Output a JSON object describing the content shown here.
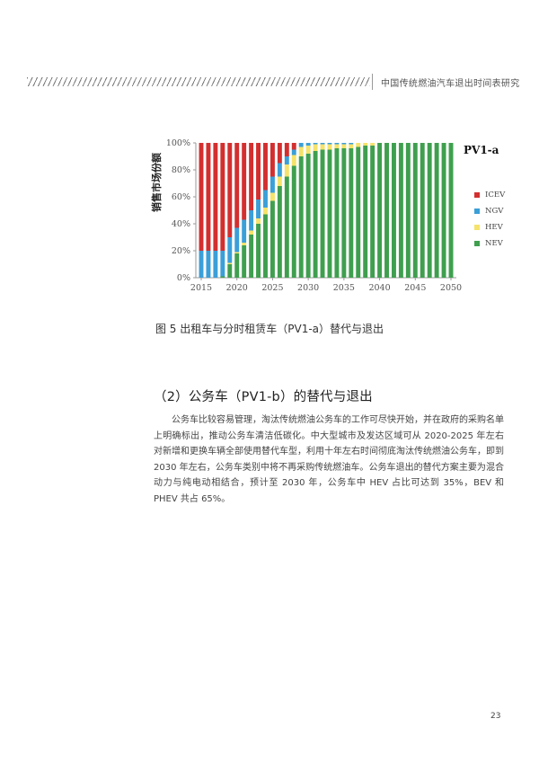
{
  "header": {
    "title": "中国传统燃油汽车退出时间表研究"
  },
  "figure": {
    "label": "PV1-a",
    "caption": "图 5 出租车与分时租赁车（PV1-a）替代与退出"
  },
  "section": {
    "title": "（2）公务车（PV1-b）的替代与退出",
    "paragraph": "公务车比较容易管理，淘汰传统燃油公务车的工作可尽快开始，并在政府的采购名单上明确标出，推动公务车清洁低碳化。中大型城市及发达区域可从 2020-2025 年左右对新增和更换车辆全部使用替代车型，利用十年左右时间彻底淘汰传统燃油公务车，即到 2030 年左右，公务车类别中将不再采购传统燃油车。公务车退出的替代方案主要为混合动力与纯电动相结合，预计至 2030 年，公务车中 HEV 占比可达到 35%，BEV 和 PHEV 共占 65%。"
  },
  "page_number": "23",
  "colors": {
    "ICEV": "#d32f2f",
    "NGV": "#3b9fd8",
    "HEV": "#f5e36b",
    "NEV": "#3f9f4f"
  },
  "chart_data": {
    "type": "bar",
    "stacked": true,
    "ylabel": "销售市场份额",
    "ylim": [
      0,
      100
    ],
    "yticks": [
      "0%",
      "20%",
      "40%",
      "60%",
      "80%",
      "100%"
    ],
    "xticks": [
      "2015",
      "2020",
      "2025",
      "2030",
      "2035",
      "2040",
      "2045",
      "2050"
    ],
    "legend": [
      "ICEV",
      "NGV",
      "HEV",
      "NEV"
    ],
    "categories": [
      2015,
      2016,
      2017,
      2018,
      2019,
      2020,
      2021,
      2022,
      2023,
      2024,
      2025,
      2026,
      2027,
      2028,
      2029,
      2030,
      2031,
      2032,
      2033,
      2034,
      2035,
      2036,
      2037,
      2038,
      2039,
      2040,
      2041,
      2042,
      2043,
      2044,
      2045,
      2046,
      2047,
      2048,
      2049,
      2050
    ],
    "series": [
      {
        "name": "ICEV",
        "values": [
          80,
          80,
          80,
          80,
          70,
          63,
          57,
          50,
          42,
          35,
          25,
          15,
          10,
          5,
          0,
          0,
          0,
          0,
          0,
          0,
          0,
          0,
          0,
          0,
          0,
          0,
          0,
          0,
          0,
          0,
          0,
          0,
          0,
          0,
          0,
          0
        ]
      },
      {
        "name": "NGV",
        "values": [
          20,
          20,
          20,
          19,
          19,
          18,
          17,
          15,
          14,
          13,
          12,
          10,
          6,
          4,
          3,
          2,
          1,
          1,
          1,
          1,
          1,
          1,
          0,
          0,
          0,
          0,
          0,
          0,
          0,
          0,
          0,
          0,
          0,
          0,
          0,
          0
        ]
      },
      {
        "name": "HEV",
        "values": [
          0,
          0,
          0,
          0,
          1,
          1,
          2,
          3,
          4,
          5,
          6,
          7,
          9,
          8,
          7,
          6,
          5,
          4,
          4,
          3,
          3,
          3,
          3,
          2,
          2,
          0,
          0,
          0,
          0,
          0,
          0,
          0,
          0,
          0,
          0,
          0
        ]
      },
      {
        "name": "NEV",
        "values": [
          0,
          0,
          0,
          1,
          10,
          18,
          24,
          32,
          40,
          47,
          57,
          68,
          75,
          83,
          90,
          92,
          94,
          95,
          95,
          96,
          96,
          96,
          97,
          98,
          98,
          100,
          100,
          100,
          100,
          100,
          100,
          100,
          100,
          100,
          100,
          100
        ]
      }
    ]
  }
}
